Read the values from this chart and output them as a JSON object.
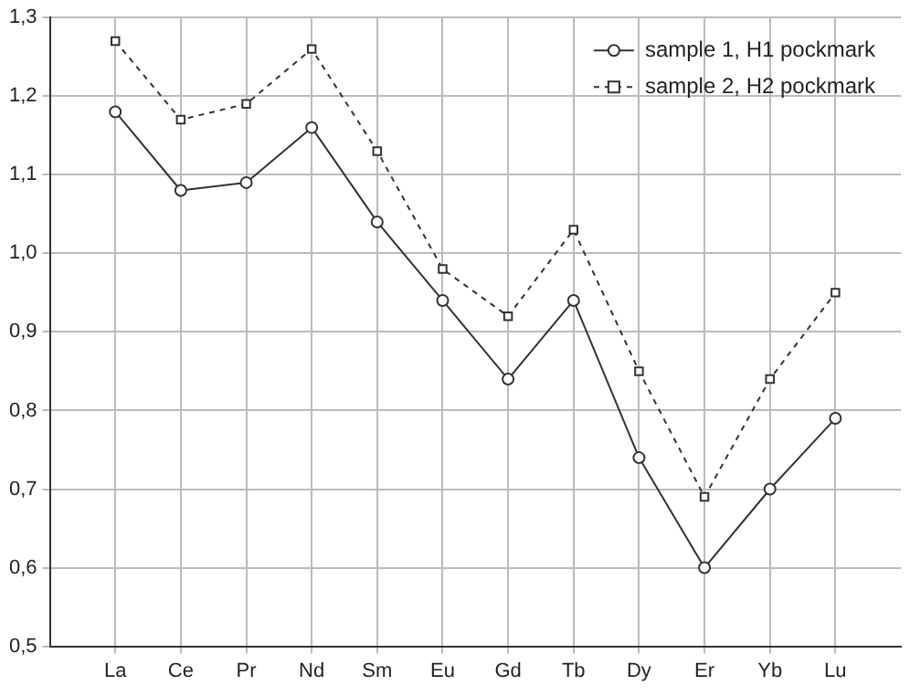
{
  "chart_data": {
    "type": "line",
    "categories": [
      "La",
      "Ce",
      "Pr",
      "Nd",
      "Sm",
      "Eu",
      "Gd",
      "Tb",
      "Dy",
      "Er",
      "Yb",
      "Lu"
    ],
    "series": [
      {
        "name": "sample 1, H1 pockmark",
        "color": "#333333",
        "marker": "circle",
        "line_style": "solid",
        "values": [
          1.18,
          1.08,
          1.09,
          1.16,
          1.04,
          0.94,
          0.84,
          0.94,
          0.74,
          0.6,
          0.7,
          0.79
        ]
      },
      {
        "name": "sample 2, H2 pockmark",
        "color": "#333333",
        "marker": "square",
        "line_style": "dashed",
        "values": [
          1.27,
          1.17,
          1.19,
          1.26,
          1.13,
          0.98,
          0.92,
          1.03,
          0.85,
          0.69,
          0.84,
          0.95
        ]
      }
    ],
    "ylim": [
      0.5,
      1.3
    ],
    "yticks": [
      {
        "value": 0.5,
        "label": "0,5"
      },
      {
        "value": 0.6,
        "label": "0,6"
      },
      {
        "value": 0.7,
        "label": "0,7"
      },
      {
        "value": 0.8,
        "label": "0,8"
      },
      {
        "value": 0.9,
        "label": "0,9"
      },
      {
        "value": 1.0,
        "label": "1,0"
      },
      {
        "value": 1.1,
        "label": "1,1"
      },
      {
        "value": 1.2,
        "label": "1,2"
      },
      {
        "value": 1.3,
        "label": "1,3"
      }
    ],
    "grid": true,
    "legend": "top right"
  }
}
